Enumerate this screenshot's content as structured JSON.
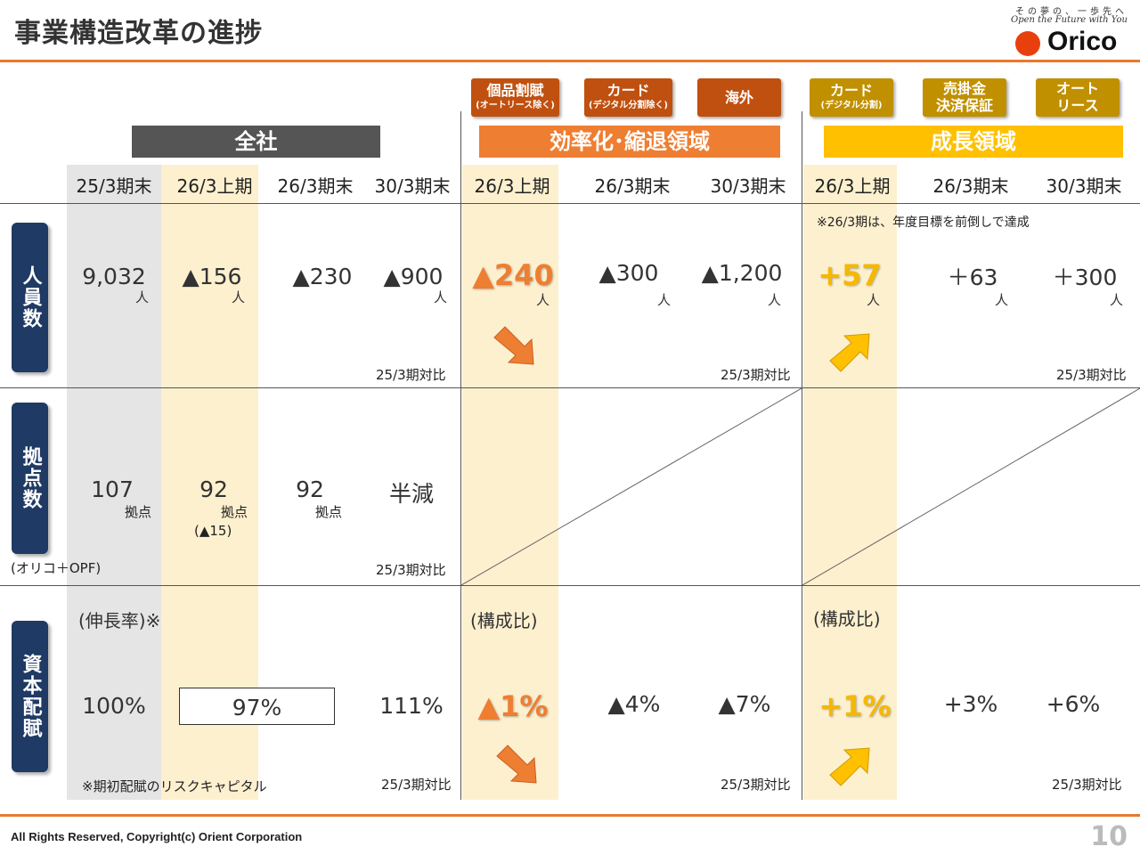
{
  "title": "事業構造改革の進捗",
  "brand": {
    "tagline_jp": "その夢の、一歩先へ",
    "tagline_en": "Open the Future with You",
    "logo_text": "Orico",
    "logo_color": "#e8400c"
  },
  "colors": {
    "accent_orange": "#ee7e32",
    "accent_yellow": "#ffc000",
    "row_label_navy": "#1f3a64"
  },
  "groups": {
    "company": "全社",
    "efficiency": "効率化･縮退領域",
    "growth": "成長領域"
  },
  "subgroups": {
    "eff1_main": "個品割賦",
    "eff1_sub": "(オートリース除く)",
    "eff2_main": "カード",
    "eff2_sub": "(デジタル分割除く)",
    "eff3_main": "海外",
    "gro1_main": "カード",
    "gro1_sub": "(デジタル分割)",
    "gro2_l1": "売掛金",
    "gro2_l2": "決済保証",
    "gro3_l1": "オート",
    "gro3_l2": "リース"
  },
  "columns": [
    "25/3期末",
    "26/3上期",
    "26/3期末",
    "30/3期末",
    "26/3上期",
    "26/3期末",
    "30/3期末",
    "26/3上期",
    "26/3期末",
    "30/3期末"
  ],
  "rows": {
    "staff": {
      "label": "人員数",
      "values": [
        "9,032",
        "▲156",
        "▲230",
        "▲900",
        "▲240",
        "▲300",
        "▲1,200",
        "+57",
        "＋63",
        "＋300"
      ],
      "unit": "人",
      "note_growth": "※26/3期は、年度目標を前倒しで達成",
      "compare": "25/3期対比"
    },
    "branches": {
      "label": "拠点数",
      "values": [
        "107",
        "92",
        "92",
        "半減"
      ],
      "unit": "拠点",
      "sub_value": "(▲15)",
      "footnote": "(オリコ＋OPF)",
      "compare": "25/3期対比"
    },
    "capital": {
      "label": "資本配賦",
      "growth_label": "(伸長率)※",
      "ratio_label": "(構成比)",
      "values": [
        "100%",
        "97%",
        "111%",
        "▲1%",
        "▲4%",
        "▲7%",
        "+1%",
        "+3%",
        "+6%"
      ],
      "footnote": "※期初配賦のリスクキャピタル",
      "compare": "25/3期対比"
    }
  },
  "footer": {
    "copyright": "All Rights Reserved, Copyright(c) Orient Corporation",
    "page": "10"
  }
}
